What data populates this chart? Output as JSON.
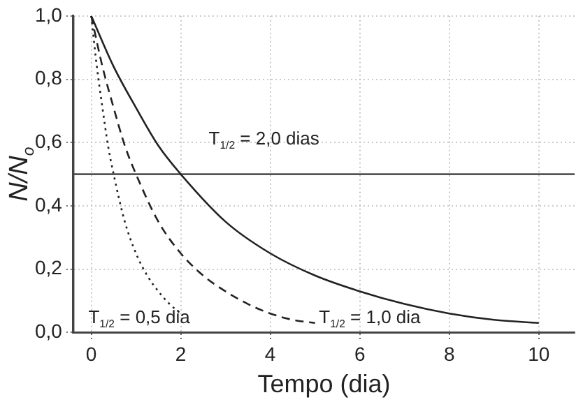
{
  "chart_data": {
    "type": "line",
    "xlabel": "Tempo (dia)",
    "ylabel": "N/N$_{o}$",
    "xlim": [
      -0.4,
      10.8
    ],
    "xticks": [
      0,
      2,
      4,
      6,
      8,
      10
    ],
    "ylim": [
      0,
      1.0
    ],
    "yticks": [
      {
        "value": 0,
        "label": "0,0"
      },
      {
        "value": 0.2,
        "label": "0,2"
      },
      {
        "value": 0.4,
        "label": "0,4"
      },
      {
        "value": 0.6,
        "label": "0,6"
      },
      {
        "value": 0.8,
        "label": "0,8"
      },
      {
        "value": 1.0,
        "label": "1,0"
      }
    ],
    "grid": true,
    "legend": false,
    "marker": "none",
    "series": [
      {
        "color": "#222222",
        "line_style": "solid",
        "x": [
          0,
          0.5,
          1,
          1.5,
          2,
          3,
          4,
          5,
          6,
          7,
          8,
          9,
          10
        ],
        "values": [
          1,
          0.84,
          0.71,
          0.59,
          0.5,
          0.35,
          0.25,
          0.18,
          0.13,
          0.09,
          0.06,
          0.04,
          0.03
        ]
      },
      {
        "color": "#222222",
        "line_style": "dashed",
        "x": [
          0,
          0.25,
          0.5,
          0.75,
          1,
          1.5,
          2,
          2.5,
          3,
          3.5,
          4,
          4.5,
          5
        ],
        "values": [
          1,
          0.84,
          0.71,
          0.59,
          0.5,
          0.35,
          0.25,
          0.18,
          0.13,
          0.09,
          0.06,
          0.04,
          0.03
        ]
      },
      {
        "color": "#222222",
        "line_style": "dotted",
        "x": [
          0,
          0.125,
          0.25,
          0.375,
          0.5,
          0.75,
          1,
          1.25,
          1.5,
          1.75,
          2
        ],
        "values": [
          1,
          0.84,
          0.71,
          0.59,
          0.5,
          0.35,
          0.25,
          0.18,
          0.13,
          0.09,
          0.06
        ]
      }
    ],
    "ref_lines": [
      {
        "axis": "y",
        "value": 0.5,
        "color": "#555555"
      }
    ],
    "annotations": [
      "T$_{1/2}$ = 2,0 dias",
      "T$_{1/2}$ = 0,5 dia",
      "T$_{1/2}$ = 1,0 dia"
    ]
  }
}
